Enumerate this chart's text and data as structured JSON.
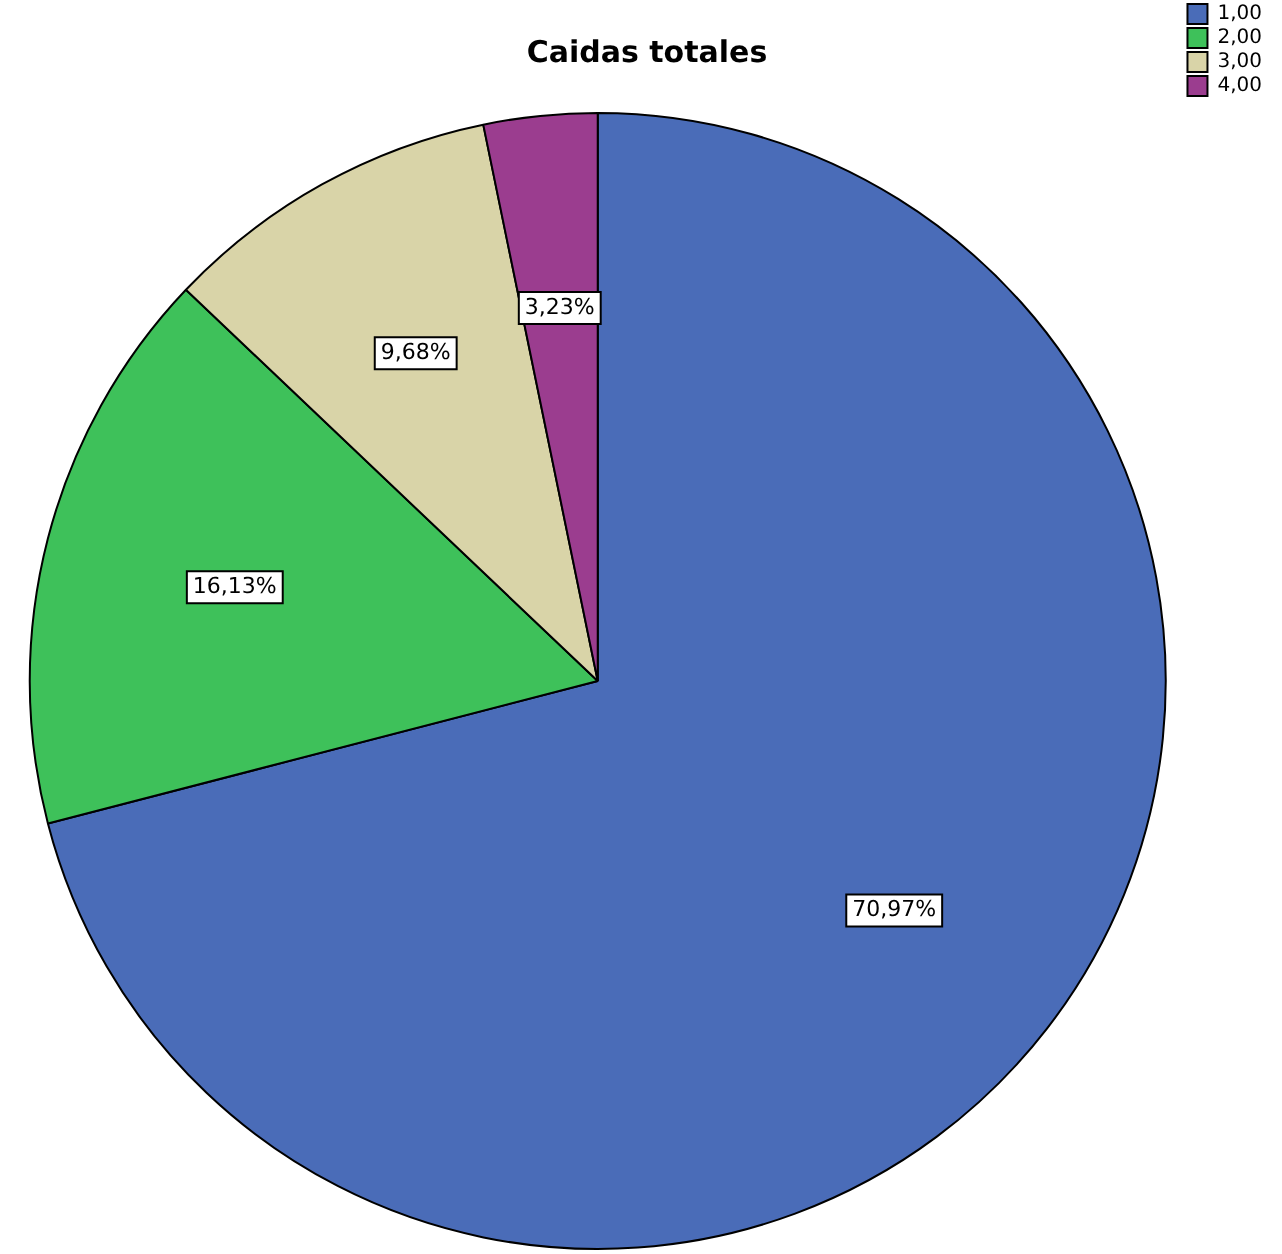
{
  "chart_data": {
    "type": "pie",
    "title": "Caidas totales",
    "categories": [
      "1,00",
      "2,00",
      "3,00",
      "4,00"
    ],
    "values": [
      70.97,
      16.13,
      9.68,
      3.23
    ],
    "colors": [
      "#4a6cb8",
      "#3ec15a",
      "#d9d4a8",
      "#9b3d8f"
    ],
    "value_labels": [
      "70,97%",
      "16,13%",
      "9,68%",
      "3,23%"
    ],
    "legend": "top right"
  }
}
